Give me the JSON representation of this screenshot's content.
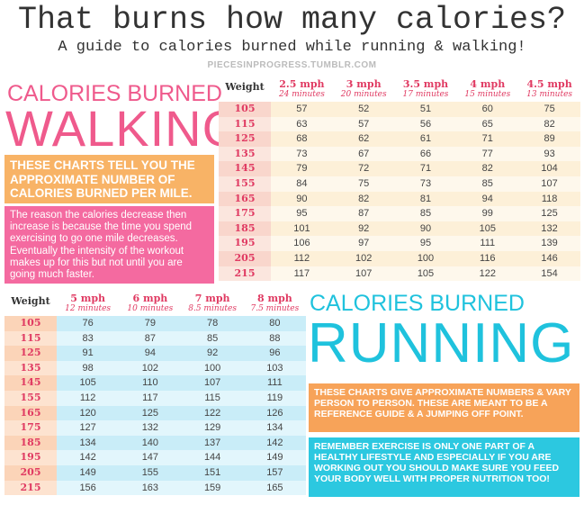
{
  "header": {
    "title": "That burns how many calories?",
    "subtitle": "A guide to calories burned while running & walking!",
    "source": "PIECESINPROGRESS.TUMBLR.COM"
  },
  "walking": {
    "heading_top": "CALORIES BURNED",
    "heading_main": "WALKING",
    "note": "THESE CHARTS TELL YOU THE APPROXIMATE NUMBER OF CALORIES BURNED PER MILE.",
    "explanation": "The reason the calories decrease then increase is because the time you spend exercising to go one mile decreases. Eventually the intensity of the workout makes up for this but not until you are going much faster.",
    "table": {
      "weight_label": "Weight",
      "columns": [
        {
          "speed": "2.5 mph",
          "time": "24 minutes"
        },
        {
          "speed": "3 mph",
          "time": "20 minutes"
        },
        {
          "speed": "3.5 mph",
          "time": "17 minutes"
        },
        {
          "speed": "4 mph",
          "time": "15 minutes"
        },
        {
          "speed": "4.5 mph",
          "time": "13 minutes"
        }
      ],
      "rows": [
        {
          "weight": 105,
          "values": [
            57,
            52,
            51,
            60,
            75
          ]
        },
        {
          "weight": 115,
          "values": [
            63,
            57,
            56,
            65,
            82
          ]
        },
        {
          "weight": 125,
          "values": [
            68,
            62,
            61,
            71,
            89
          ]
        },
        {
          "weight": 135,
          "values": [
            73,
            67,
            66,
            77,
            93
          ]
        },
        {
          "weight": 145,
          "values": [
            79,
            72,
            71,
            82,
            104
          ]
        },
        {
          "weight": 155,
          "values": [
            84,
            75,
            73,
            85,
            107
          ]
        },
        {
          "weight": 165,
          "values": [
            90,
            82,
            81,
            94,
            118
          ]
        },
        {
          "weight": 175,
          "values": [
            95,
            87,
            85,
            99,
            125
          ]
        },
        {
          "weight": 185,
          "values": [
            101,
            92,
            90,
            105,
            132
          ]
        },
        {
          "weight": 195,
          "values": [
            106,
            97,
            95,
            111,
            139
          ]
        },
        {
          "weight": 205,
          "values": [
            112,
            102,
            100,
            116,
            146
          ]
        },
        {
          "weight": 215,
          "values": [
            117,
            107,
            105,
            122,
            154
          ]
        }
      ]
    }
  },
  "running": {
    "heading_top": "CALORIES BURNED",
    "heading_main": "RUNNING",
    "note": "THESE CHARTS GIVE APPROXIMATE NUMBERS & VARY PERSON TO PERSON. THESE ARE MEANT TO BE A REFERENCE GUIDE & A JUMPING OFF POINT.",
    "reminder": "REMEMBER EXERCISE IS ONLY ONE PART OF A HEALTHY LIFESTYLE AND ESPECIALLY IF YOU ARE WORKING OUT YOU SHOULD MAKE SURE YOU FEED YOUR BODY WELL WITH PROPER NUTRITION TOO!",
    "table": {
      "weight_label": "Weight",
      "columns": [
        {
          "speed": "5 mph",
          "time": "12 minutes"
        },
        {
          "speed": "6 mph",
          "time": "10 minutes"
        },
        {
          "speed": "7 mph",
          "time": "8.5 minutes"
        },
        {
          "speed": "8 mph",
          "time": "7.5 minutes"
        }
      ],
      "rows": [
        {
          "weight": 105,
          "values": [
            76,
            79,
            78,
            80
          ]
        },
        {
          "weight": 115,
          "values": [
            83,
            87,
            85,
            88
          ]
        },
        {
          "weight": 125,
          "values": [
            91,
            94,
            92,
            96
          ]
        },
        {
          "weight": 135,
          "values": [
            98,
            102,
            100,
            103
          ]
        },
        {
          "weight": 145,
          "values": [
            105,
            110,
            107,
            111
          ]
        },
        {
          "weight": 155,
          "values": [
            112,
            117,
            115,
            119
          ]
        },
        {
          "weight": 165,
          "values": [
            120,
            125,
            122,
            126
          ]
        },
        {
          "weight": 175,
          "values": [
            127,
            132,
            129,
            134
          ]
        },
        {
          "weight": 185,
          "values": [
            134,
            140,
            137,
            142
          ]
        },
        {
          "weight": 195,
          "values": [
            142,
            147,
            144,
            149
          ]
        },
        {
          "weight": 205,
          "values": [
            149,
            155,
            151,
            157
          ]
        },
        {
          "weight": 215,
          "values": [
            156,
            163,
            159,
            165
          ]
        }
      ]
    }
  }
}
